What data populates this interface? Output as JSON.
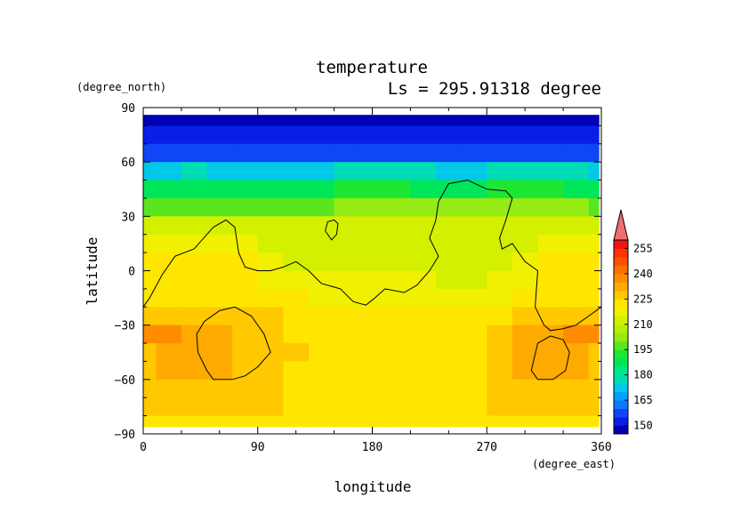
{
  "chart_data": {
    "type": "heatmap",
    "title": "temperature",
    "subtitle": "Ls = 295.91318 degree",
    "xlabel": "longitude",
    "ylabel": "latitude",
    "xunit": "(degree_east)",
    "yunit": "(degree_north)",
    "xlim": [
      0,
      360
    ],
    "ylim": [
      -90,
      90
    ],
    "xticks": [
      "0",
      "90",
      "180",
      "270",
      "360"
    ],
    "yticks": [
      "90",
      "60",
      "30",
      "0",
      "−30",
      "−60",
      "−90"
    ],
    "colorbar": {
      "levels": [
        145,
        150,
        155,
        160,
        165,
        170,
        175,
        180,
        185,
        190,
        195,
        200,
        205,
        210,
        215,
        220,
        225,
        230,
        235,
        240,
        245,
        250,
        255,
        260
      ],
      "tick_labels": [
        "150",
        "165",
        "180",
        "195",
        "210",
        "225",
        "240",
        "255"
      ],
      "colors": [
        "#0000b4",
        "#0a1ee6",
        "#0f46f5",
        "#0f78ff",
        "#00a0ff",
        "#00c8e6",
        "#00dcb4",
        "#00e68c",
        "#00e65a",
        "#1ee632",
        "#5ae61e",
        "#96eb14",
        "#b4f00a",
        "#d2f000",
        "#f0f000",
        "#ffe600",
        "#ffc800",
        "#ffaa00",
        "#ff8c00",
        "#ff6e00",
        "#ff5000",
        "#ff3200",
        "#f01414",
        "#f06e6e"
      ],
      "extend": "max"
    },
    "rows": [
      {
        "lat": 85,
        "values": [
          146,
          146,
          146,
          146,
          146,
          146,
          146,
          146,
          146,
          146,
          146,
          146,
          146,
          146,
          146,
          146,
          146,
          146,
          146
        ]
      },
      {
        "lat": 75,
        "values": [
          150,
          150,
          150,
          150,
          150,
          150,
          150,
          150,
          150,
          150,
          150,
          150,
          150,
          150,
          150,
          150,
          150,
          150,
          150
        ]
      },
      {
        "lat": 65,
        "values": [
          156,
          158,
          158,
          157,
          156,
          155,
          155,
          156,
          158,
          158,
          157,
          156,
          156,
          156,
          156,
          157,
          158,
          158,
          156
        ]
      },
      {
        "lat": 55,
        "values": [
          172,
          174,
          175,
          174,
          173,
          172,
          172,
          173,
          175,
          176,
          176,
          175,
          174,
          174,
          175,
          176,
          176,
          175,
          172
        ]
      },
      {
        "lat": 45,
        "values": [
          185,
          187,
          188,
          188,
          187,
          187,
          187,
          188,
          190,
          190,
          190,
          189,
          189,
          189,
          190,
          190,
          190,
          189,
          186
        ]
      },
      {
        "lat": 35,
        "values": [
          196,
          198,
          199,
          199,
          198,
          198,
          198,
          199,
          201,
          201,
          200,
          200,
          200,
          201,
          202,
          202,
          202,
          201,
          197
        ]
      },
      {
        "lat": 25,
        "values": [
          210,
          212,
          212,
          211,
          210,
          210,
          211,
          212,
          212,
          212,
          211,
          211,
          210,
          210,
          211,
          212,
          212,
          212,
          210
        ]
      },
      {
        "lat": 15,
        "values": [
          219,
          219,
          219,
          219,
          219,
          213,
          212,
          212,
          212,
          212,
          212,
          212,
          212,
          212,
          212,
          213,
          219,
          219,
          219
        ]
      },
      {
        "lat": 5,
        "values": [
          220,
          221,
          221,
          221,
          221,
          215,
          214,
          214,
          214,
          214,
          214,
          213,
          213,
          213,
          214,
          215,
          220,
          221,
          220
        ]
      },
      {
        "lat": -5,
        "values": [
          221,
          222,
          222,
          222,
          222,
          218,
          216,
          215,
          215,
          215,
          215,
          215,
          214,
          214,
          215,
          219,
          222,
          222,
          221
        ]
      },
      {
        "lat": -15,
        "values": [
          223,
          224,
          224,
          224,
          224,
          222,
          220,
          218,
          217,
          217,
          216,
          216,
          216,
          217,
          219,
          222,
          224,
          224,
          223
        ]
      },
      {
        "lat": -25,
        "values": [
          228,
          228,
          228,
          228,
          228,
          226,
          224,
          224,
          224,
          224,
          224,
          224,
          224,
          224,
          224,
          226,
          228,
          228,
          228
        ]
      },
      {
        "lat": -35,
        "values": [
          236,
          237,
          234,
          230,
          229,
          228,
          224,
          223,
          223,
          223,
          223,
          223,
          223,
          224,
          228,
          230,
          234,
          237,
          236
        ]
      },
      {
        "lat": -45,
        "values": [
          228,
          230,
          230,
          230,
          229,
          228,
          225,
          224,
          224,
          224,
          224,
          224,
          224,
          224,
          229,
          230,
          230,
          230,
          228
        ]
      },
      {
        "lat": -55,
        "values": [
          228,
          230,
          230,
          230,
          228,
          226,
          224,
          224,
          224,
          224,
          224,
          224,
          224,
          224,
          226,
          230,
          230,
          230,
          228
        ]
      },
      {
        "lat": -65,
        "values": [
          228,
          229,
          229,
          229,
          228,
          226,
          224,
          224,
          224,
          224,
          224,
          224,
          224,
          224,
          226,
          228,
          229,
          229,
          228
        ]
      },
      {
        "lat": -75,
        "values": [
          227,
          228,
          228,
          228,
          227,
          225,
          224,
          224,
          224,
          224,
          224,
          224,
          224,
          224,
          225,
          227,
          228,
          228,
          227
        ]
      },
      {
        "lat": -85,
        "values": [
          224,
          224,
          224,
          224,
          224,
          224,
          224,
          224,
          224,
          224,
          224,
          224,
          224,
          224,
          224,
          224,
          224,
          224,
          224
        ]
      }
    ],
    "lon": [
      0,
      20,
      40,
      60,
      80,
      100,
      120,
      140,
      160,
      180,
      200,
      220,
      240,
      260,
      280,
      300,
      320,
      340,
      360
    ],
    "contours": [
      {
        "name": "continent",
        "points": [
          [
            0,
            -20
          ],
          [
            5,
            -15
          ],
          [
            15,
            -2
          ],
          [
            25,
            8
          ],
          [
            40,
            12
          ],
          [
            55,
            24
          ],
          [
            65,
            28
          ],
          [
            72,
            24
          ],
          [
            75,
            10
          ],
          [
            80,
            2
          ],
          [
            90,
            0
          ],
          [
            100,
            0
          ],
          [
            110,
            2
          ],
          [
            120,
            5
          ],
          [
            130,
            0
          ],
          [
            140,
            -7
          ],
          [
            155,
            -10
          ],
          [
            165,
            -17
          ],
          [
            175,
            -19
          ],
          [
            182,
            -15
          ],
          [
            190,
            -10
          ],
          [
            205,
            -12
          ],
          [
            215,
            -8
          ],
          [
            225,
            0
          ],
          [
            232,
            8
          ],
          [
            225,
            18
          ],
          [
            230,
            28
          ],
          [
            232,
            38
          ],
          [
            240,
            48
          ],
          [
            255,
            50
          ],
          [
            270,
            45
          ],
          [
            285,
            44
          ],
          [
            290,
            40
          ],
          [
            285,
            28
          ],
          [
            280,
            18
          ],
          [
            282,
            12
          ],
          [
            290,
            15
          ],
          [
            300,
            5
          ],
          [
            310,
            0
          ],
          [
            308,
            -20
          ],
          [
            315,
            -30
          ],
          [
            320,
            -33
          ],
          [
            330,
            -32
          ],
          [
            340,
            -30
          ],
          [
            350,
            -25
          ],
          [
            360,
            -20
          ]
        ]
      },
      {
        "name": "island",
        "points": [
          [
            143,
            22
          ],
          [
            145,
            27
          ],
          [
            150,
            28
          ],
          [
            153,
            26
          ],
          [
            152,
            20
          ],
          [
            148,
            17
          ],
          [
            143,
            22
          ]
        ]
      },
      {
        "name": "basin-west",
        "points": [
          [
            50,
            -55
          ],
          [
            43,
            -45
          ],
          [
            42,
            -35
          ],
          [
            48,
            -28
          ],
          [
            60,
            -22
          ],
          [
            72,
            -20
          ],
          [
            85,
            -25
          ],
          [
            95,
            -35
          ],
          [
            100,
            -45
          ],
          [
            90,
            -53
          ],
          [
            80,
            -58
          ],
          [
            70,
            -60
          ],
          [
            55,
            -60
          ],
          [
            50,
            -55
          ]
        ]
      },
      {
        "name": "basin-east",
        "points": [
          [
            305,
            -55
          ],
          [
            310,
            -40
          ],
          [
            320,
            -36
          ],
          [
            330,
            -38
          ],
          [
            335,
            -45
          ],
          [
            332,
            -55
          ],
          [
            322,
            -60
          ],
          [
            310,
            -60
          ],
          [
            305,
            -55
          ]
        ]
      }
    ]
  }
}
